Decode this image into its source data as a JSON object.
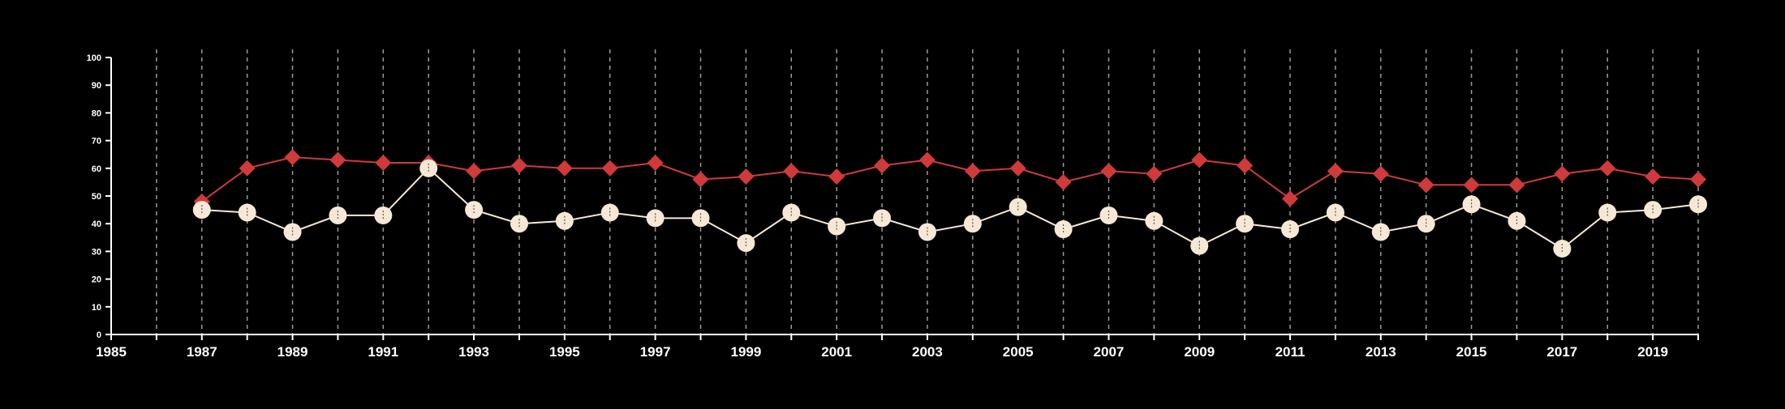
{
  "chart_data": {
    "type": "line",
    "x": [
      1987,
      1988,
      1989,
      1990,
      1991,
      1992,
      1993,
      1994,
      1995,
      1996,
      1997,
      1998,
      1999,
      2000,
      2001,
      2002,
      2003,
      2004,
      2005,
      2006,
      2007,
      2008,
      2009,
      2010,
      2011,
      2012,
      2013,
      2014,
      2015,
      2016,
      2017,
      2018,
      2019,
      2020
    ],
    "series": [
      {
        "color": "#d03a3a",
        "marker": "diamond",
        "values": [
          48,
          60,
          64,
          63,
          62,
          62,
          59,
          61,
          60,
          60,
          62,
          56,
          57,
          59,
          57,
          61,
          63,
          59,
          60,
          55,
          59,
          58,
          63,
          61,
          49,
          59,
          58,
          54,
          54,
          54,
          58,
          60,
          57,
          56
        ]
      },
      {
        "color": "#f7e8d6",
        "marker": "circle",
        "values": [
          45,
          44,
          37,
          43,
          43,
          60,
          45,
          40,
          41,
          44,
          42,
          42,
          33,
          44,
          39,
          42,
          37,
          40,
          46,
          38,
          43,
          41,
          32,
          40,
          38,
          44,
          37,
          40,
          47,
          41,
          31,
          44,
          45,
          47
        ]
      }
    ],
    "xlim": [
      1985,
      2020
    ],
    "ylim": [
      0,
      100
    ],
    "y_ticks": [
      "0",
      "10",
      "20",
      "30",
      "40",
      "50",
      "60",
      "70",
      "80",
      "90",
      "100"
    ],
    "x_tick_labels": [
      "1985",
      "1987",
      "1989",
      "1991",
      "1993",
      "1995",
      "1997",
      "1999",
      "2001",
      "2003",
      "2005",
      "2007",
      "2009",
      "2011",
      "2013",
      "2015",
      "2017",
      "2019"
    ],
    "grid": "vertical-dashed",
    "axis_color": "#ffffff",
    "grid_color": "#9a9a9a",
    "background": "#000000"
  }
}
